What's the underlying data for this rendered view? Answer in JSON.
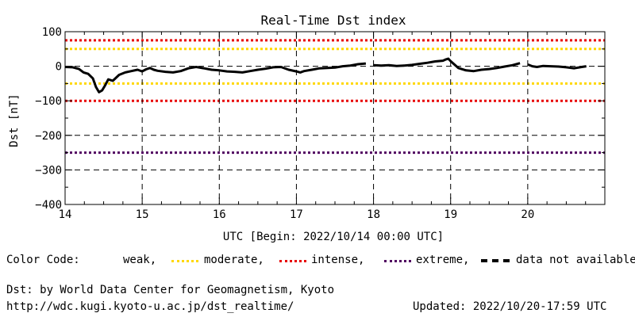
{
  "chart_data": {
    "type": "line",
    "title": "Real-Time Dst index",
    "ylabel": "Dst [nT]",
    "xlabel": "UTC [Begin: 2022/10/14 00:00 UTC]",
    "ylim": [
      -400,
      100
    ],
    "xlim_days": [
      0,
      7
    ],
    "xticks": [
      "14",
      "15",
      "16",
      "17",
      "18",
      "19",
      "20"
    ],
    "yticks": [
      100,
      0,
      -100,
      -200,
      -300,
      -400
    ],
    "grid": true,
    "thresholds": [
      {
        "name": "weak",
        "values": [],
        "color": "#ffffff"
      },
      {
        "name": "moderate",
        "values": [
          50,
          -50
        ],
        "color": "#ffd800"
      },
      {
        "name": "intense",
        "values": [
          75,
          -100
        ],
        "color": "#e80000"
      },
      {
        "name": "extreme",
        "values": [
          -250
        ],
        "color": "#500060"
      }
    ],
    "series": [
      {
        "segments": [
          {
            "x": [
              0.0,
              0.1,
              0.18,
              0.24,
              0.3,
              0.36,
              0.4,
              0.44,
              0.48,
              0.52,
              0.56,
              0.62,
              0.7,
              0.78,
              0.86,
              0.94,
              1.0,
              1.05,
              1.1,
              1.15,
              1.2,
              1.3,
              1.4,
              1.5,
              1.6,
              1.7,
              1.8,
              1.9,
              2.0,
              2.1,
              2.2,
              2.3,
              2.4,
              2.5,
              2.6,
              2.7,
              2.8,
              2.9,
              3.0,
              3.05,
              3.1,
              3.2,
              3.3,
              3.4,
              3.5,
              3.6,
              3.7,
              3.8,
              3.9
            ],
            "y": [
              -2,
              -3,
              -8,
              -18,
              -22,
              -35,
              -60,
              -75,
              -70,
              -55,
              -38,
              -42,
              -25,
              -18,
              -14,
              -10,
              -15,
              -9,
              -5,
              -10,
              -13,
              -16,
              -18,
              -14,
              -6,
              -2,
              -6,
              -10,
              -12,
              -15,
              -16,
              -18,
              -14,
              -10,
              -7,
              -3,
              -2,
              -10,
              -15,
              -18,
              -14,
              -10,
              -6,
              -5,
              -4,
              0,
              2,
              6,
              8
            ]
          },
          {
            "x": [
              4.0,
              4.1,
              4.2,
              4.3,
              4.4,
              4.5,
              4.6,
              4.7,
              4.8,
              4.9,
              4.94,
              4.97,
              5.0,
              5.1,
              5.2,
              5.3,
              5.4,
              5.5,
              5.6,
              5.7,
              5.8,
              5.9
            ],
            "y": [
              3,
              2,
              3,
              1,
              2,
              4,
              7,
              10,
              14,
              16,
              20,
              22,
              15,
              -5,
              -12,
              -14,
              -10,
              -8,
              -5,
              -1,
              3,
              9
            ]
          },
          {
            "x": [
              6.0,
              6.06,
              6.12,
              6.2,
              6.3,
              6.4,
              6.5,
              6.6,
              6.7,
              6.76
            ],
            "y": [
              5,
              0,
              -2,
              1,
              0,
              -1,
              -3,
              -6,
              -2,
              0
            ]
          }
        ]
      }
    ]
  },
  "legend": {
    "label": "Color Code:",
    "weak": "weak,",
    "moderate": "moderate,",
    "intense": "intense,",
    "extreme": "extreme,",
    "na": "data not available."
  },
  "footer": {
    "source": "Dst: by World Data Center for Geomagnetism, Kyoto",
    "url": "http://wdc.kugi.kyoto-u.ac.jp/dst_realtime/",
    "updated": "Updated: 2022/10/20-17:59 UTC"
  }
}
